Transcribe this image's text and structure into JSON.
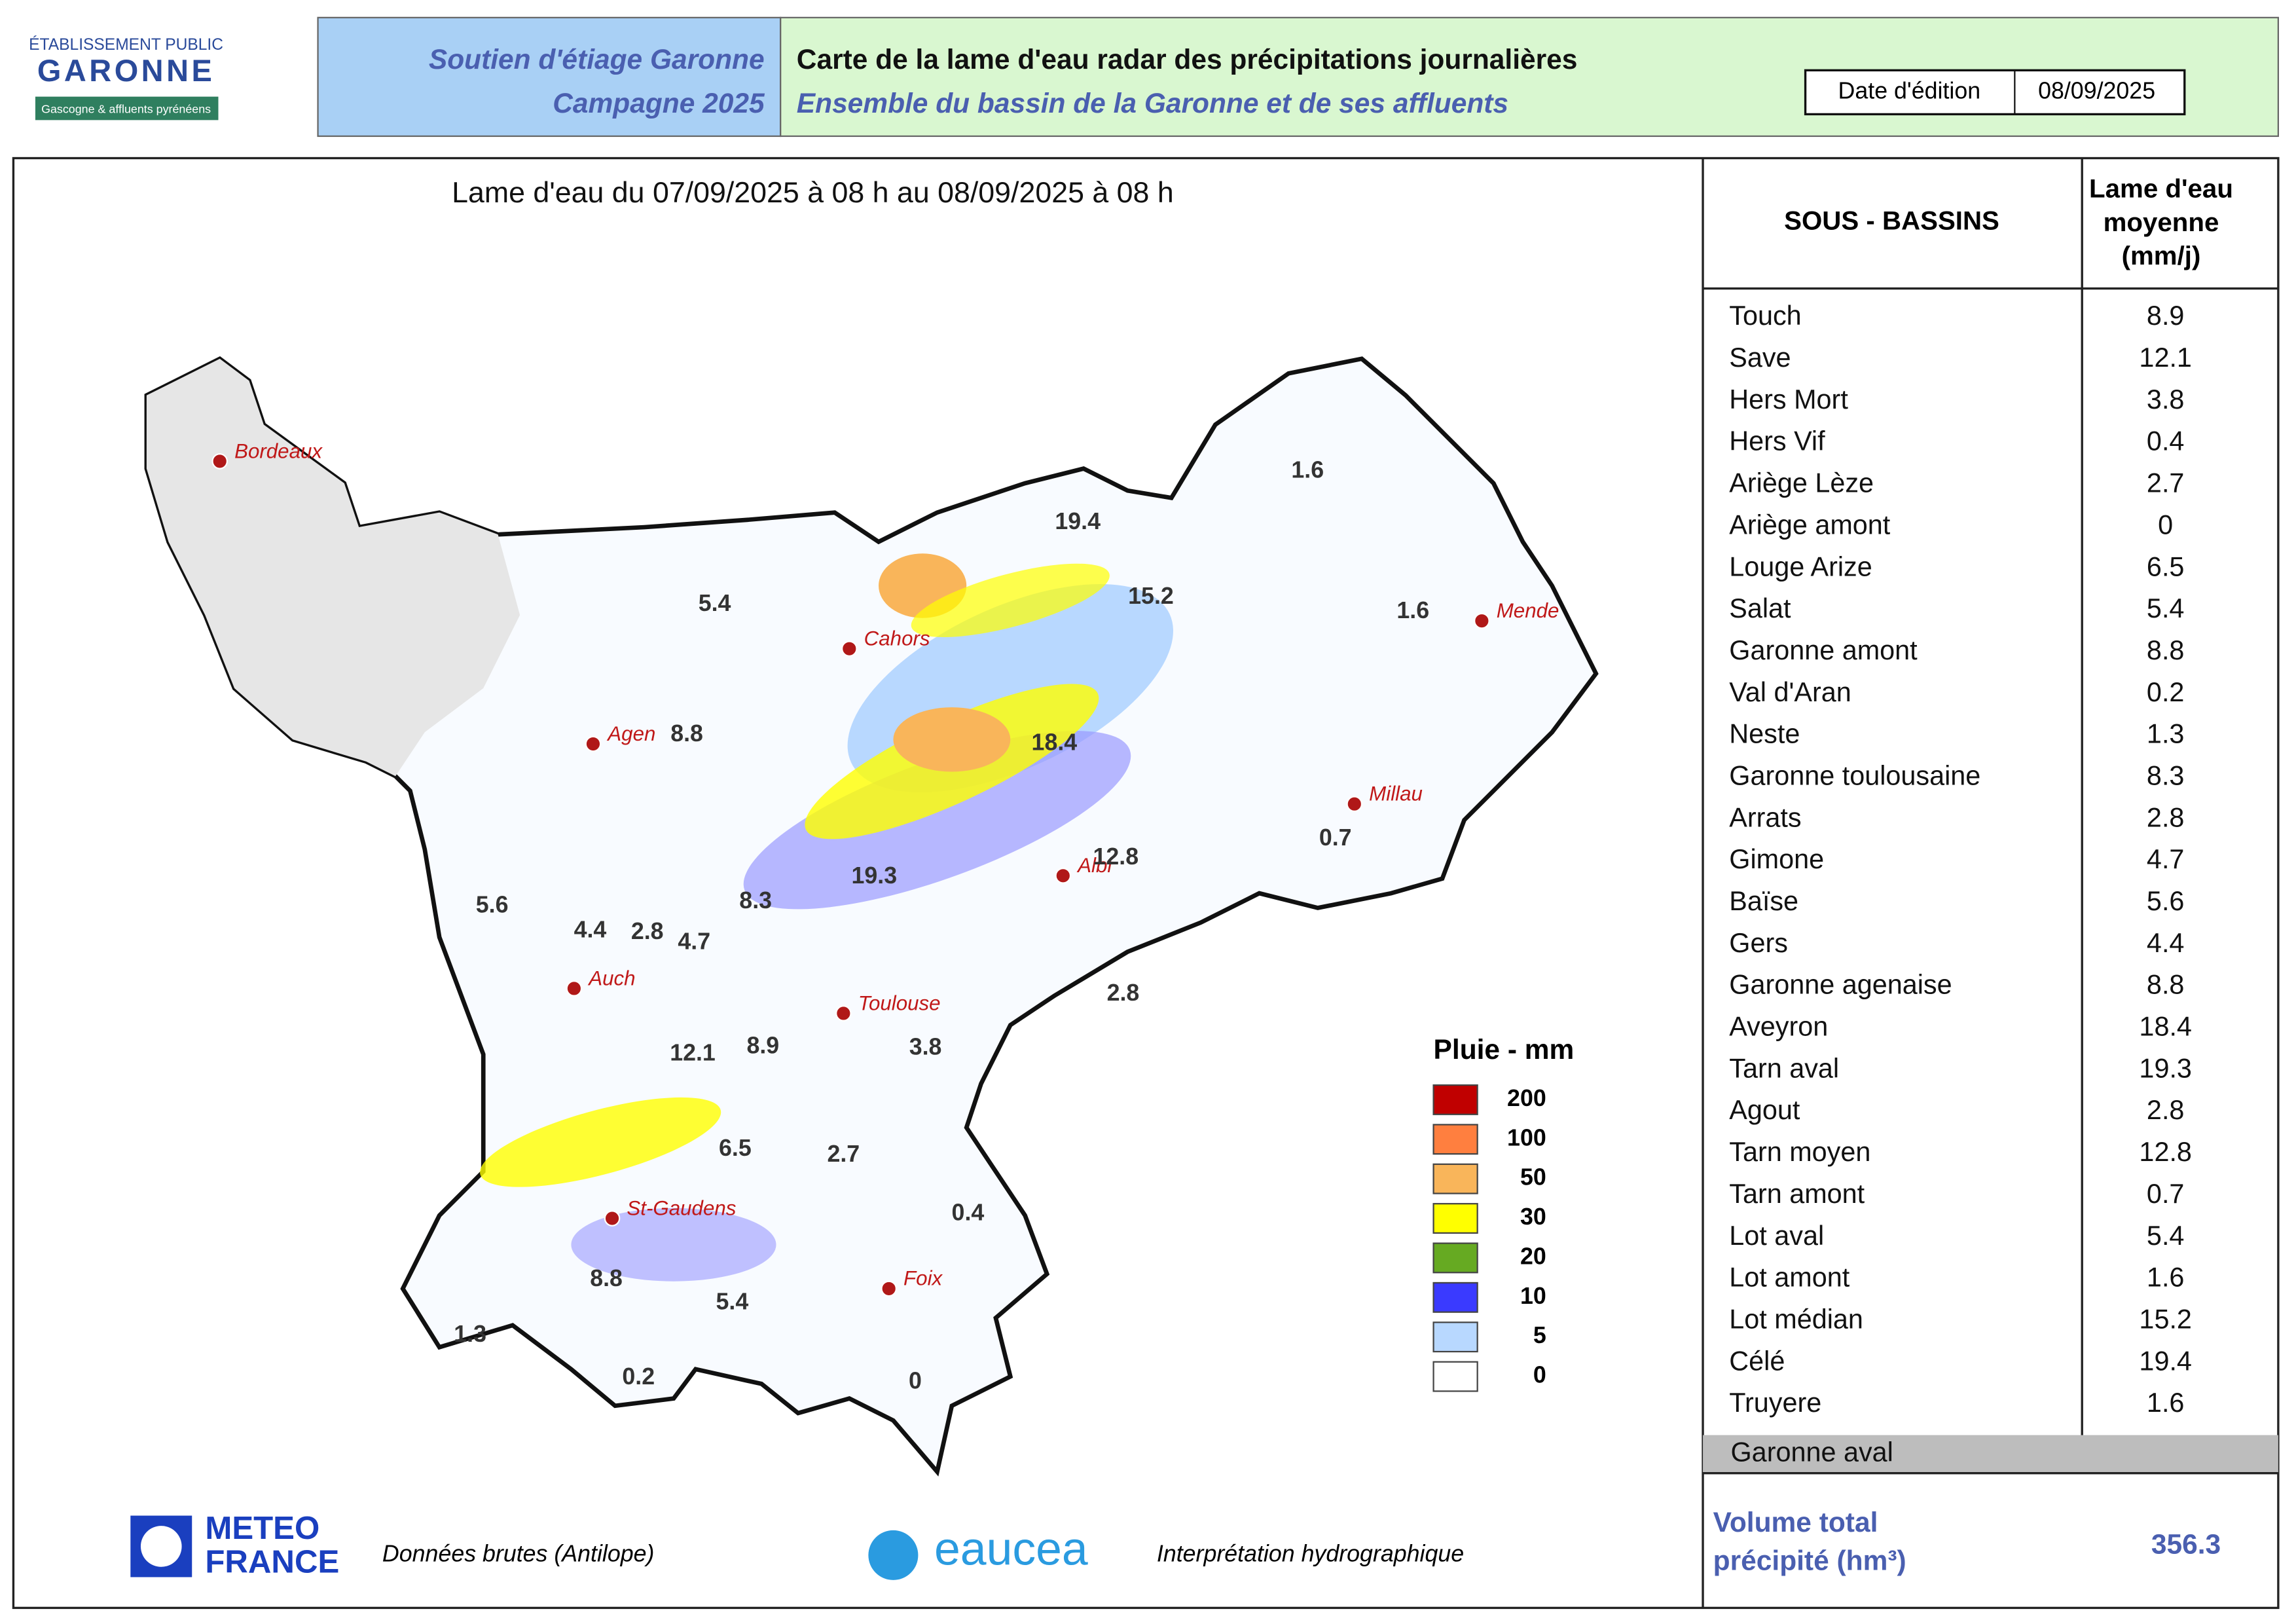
{
  "header": {
    "logo_line1": "ÉTABLISSEMENT PUBLIC",
    "logo_line2": "GARONNE",
    "logo_line3": "Gascogne & affluents pyrénéens",
    "campaign_line1": "Soutien d'étiage Garonne",
    "campaign_line2": "Campagne 2025",
    "title": "Carte de la lame d'eau radar des précipitations journalières",
    "subtitle": "Ensemble du bassin de la Garonne et de ses affluents",
    "date_label": "Date d'édition",
    "date_value": "08/09/2025"
  },
  "map": {
    "period": "Lame d'eau du 07/09/2025  à 08 h au  08/09/2025   à 08 h",
    "cities": [
      "Bordeaux",
      "Cahors",
      "Agen",
      "Mende",
      "Millau",
      "Albi",
      "Auch",
      "Toulouse",
      "St-Gaudens",
      "Foix"
    ],
    "basin_values": [
      1.6,
      19.4,
      5.4,
      15.2,
      1.6,
      8.8,
      18.4,
      0.7,
      12.8,
      19.3,
      8.3,
      5.6,
      4.4,
      2.8,
      4.7,
      2.8,
      12.1,
      8.9,
      3.8,
      6.5,
      2.7,
      0.4,
      8.8,
      5.4,
      1.3,
      0.2,
      0
    ],
    "legend": {
      "title": "Pluie - mm",
      "items": [
        {
          "label": 200,
          "color": "#c00000"
        },
        {
          "label": 100,
          "color": "#ff7f3f"
        },
        {
          "label": 50,
          "color": "#f9b55a"
        },
        {
          "label": 30,
          "color": "#ffff00"
        },
        {
          "label": 20,
          "color": "#66aa22"
        },
        {
          "label": 10,
          "color": "#3a3aff"
        },
        {
          "label": 5,
          "color": "#b8d8ff"
        },
        {
          "label": 0,
          "color": "#ffffff"
        }
      ]
    }
  },
  "table": {
    "header_name": "SOUS - BASSINS",
    "header_value": [
      "Lame d'eau",
      "moyenne",
      "(mm/j)"
    ],
    "rows": [
      [
        "Touch",
        8.9
      ],
      [
        "Save",
        12.1
      ],
      [
        "Hers Mort",
        3.8
      ],
      [
        "Hers Vif",
        0.4
      ],
      [
        "Ariège Lèze",
        2.7
      ],
      [
        "Ariège amont",
        0
      ],
      [
        "Louge Arize",
        6.5
      ],
      [
        "Salat",
        5.4
      ],
      [
        "Garonne amont",
        8.8
      ],
      [
        "Val d'Aran",
        0.2
      ],
      [
        "Neste",
        1.3
      ],
      [
        "Garonne toulousaine",
        8.3
      ],
      [
        "Arrats",
        2.8
      ],
      [
        "Gimone",
        4.7
      ],
      [
        "Baïse",
        5.6
      ],
      [
        "Gers",
        4.4
      ],
      [
        "Garonne agenaise",
        8.8
      ],
      [
        "Aveyron",
        18.4
      ],
      [
        "Tarn aval",
        19.3
      ],
      [
        "Agout",
        2.8
      ],
      [
        "Tarn moyen",
        12.8
      ],
      [
        "Tarn amont",
        0.7
      ],
      [
        "Lot aval",
        5.4
      ],
      [
        "Lot amont",
        1.6
      ],
      [
        "Lot médian",
        15.2
      ],
      [
        "Célé",
        19.4
      ],
      [
        "Truyere",
        1.6
      ]
    ],
    "grey_row": "Garonne aval",
    "total_label": [
      "Volume total",
      "précipité (hm³)"
    ],
    "total_value": 356.3
  },
  "footer": {
    "meteo_line1": "METEO",
    "meteo_line2": "FRANCE",
    "meteo_note": "Données brutes (Antilope)",
    "eaucea": "eaucea",
    "eaucea_note": "Interprétation hydrographique"
  }
}
